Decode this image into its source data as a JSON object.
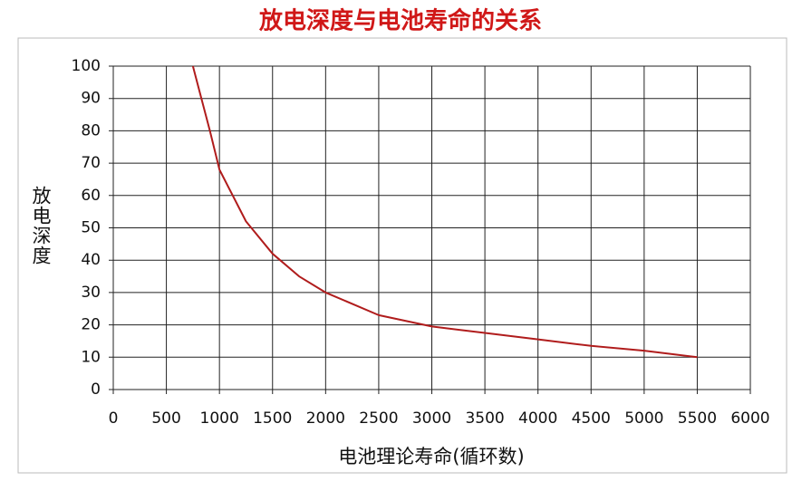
{
  "chart_data": {
    "type": "line",
    "title": "放电深度与电池寿命的关系",
    "x_label": "电池理论寿命(循环数)",
    "y_label": "放电深度",
    "x": [
      750,
      830,
      910,
      1000,
      1250,
      1500,
      1750,
      2000,
      2500,
      3000,
      3500,
      4000,
      4500,
      5000,
      5500
    ],
    "series": [
      {
        "name": "放电深度",
        "color": "#b01c1c",
        "values": [
          100,
          90,
          80,
          68,
          52,
          42,
          35,
          30,
          23,
          19.5,
          17.5,
          15.5,
          13.5,
          12,
          10
        ]
      }
    ],
    "xlim": [
      0,
      6000
    ],
    "xticks": [
      0,
      500,
      1000,
      1500,
      2000,
      2500,
      3000,
      3500,
      4000,
      4500,
      5000,
      5500,
      6000
    ],
    "ylim": [
      0,
      100
    ],
    "yticks": [
      0,
      10,
      20,
      30,
      40,
      50,
      60,
      70,
      80,
      90,
      100
    ],
    "grid": true
  }
}
